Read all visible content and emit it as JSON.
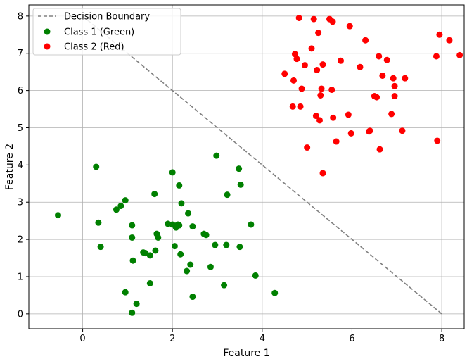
{
  "chart_data": {
    "type": "scatter",
    "xlabel": "Feature 1",
    "ylabel": "Feature 2",
    "xlim": [
      -1.2,
      8.5
    ],
    "ylim": [
      -0.4,
      8.3
    ],
    "xticks": [
      "0",
      "2",
      "4",
      "6",
      "8"
    ],
    "xtick_values": [
      0,
      2,
      4,
      6,
      8
    ],
    "yticks": [
      "0",
      "1",
      "2",
      "3",
      "4",
      "5",
      "6",
      "7",
      "8"
    ],
    "ytick_values": [
      0,
      1,
      2,
      3,
      4,
      5,
      6,
      7,
      8
    ],
    "grid": true,
    "legend_position": "top-left",
    "boundary": {
      "name": "Decision Boundary",
      "color": "#808080",
      "x": [
        0,
        8
      ],
      "y": [
        8,
        0
      ]
    },
    "series": [
      {
        "name": "Class 1 (Green)",
        "color": "#008000",
        "points": [
          [
            -0.55,
            2.65
          ],
          [
            0.3,
            3.95
          ],
          [
            0.35,
            2.45
          ],
          [
            0.4,
            1.8
          ],
          [
            0.75,
            2.8
          ],
          [
            0.85,
            2.9
          ],
          [
            0.95,
            3.05
          ],
          [
            0.95,
            0.58
          ],
          [
            1.1,
            2.38
          ],
          [
            1.1,
            2.05
          ],
          [
            1.12,
            1.43
          ],
          [
            1.1,
            0.03
          ],
          [
            1.2,
            0.27
          ],
          [
            1.35,
            1.65
          ],
          [
            1.4,
            1.63
          ],
          [
            1.5,
            1.57
          ],
          [
            1.5,
            0.82
          ],
          [
            1.6,
            3.22
          ],
          [
            1.62,
            1.7
          ],
          [
            1.65,
            2.15
          ],
          [
            1.68,
            2.05
          ],
          [
            1.9,
            2.42
          ],
          [
            2.0,
            2.4
          ],
          [
            2.0,
            3.8
          ],
          [
            2.05,
            1.82
          ],
          [
            2.08,
            2.32
          ],
          [
            2.12,
            2.4
          ],
          [
            2.15,
            3.45
          ],
          [
            2.15,
            2.38
          ],
          [
            2.18,
            1.6
          ],
          [
            2.2,
            2.97
          ],
          [
            2.32,
            1.15
          ],
          [
            2.35,
            2.7
          ],
          [
            2.4,
            1.32
          ],
          [
            2.45,
            2.35
          ],
          [
            2.45,
            0.46
          ],
          [
            2.7,
            2.15
          ],
          [
            2.75,
            2.12
          ],
          [
            2.85,
            1.26
          ],
          [
            2.95,
            1.85
          ],
          [
            2.98,
            4.25
          ],
          [
            3.15,
            0.77
          ],
          [
            3.2,
            1.85
          ],
          [
            3.22,
            3.2
          ],
          [
            3.48,
            3.9
          ],
          [
            3.5,
            1.8
          ],
          [
            3.52,
            3.47
          ],
          [
            3.75,
            2.4
          ],
          [
            3.85,
            1.03
          ],
          [
            4.28,
            0.56
          ]
        ]
      },
      {
        "name": "Class 2 (Red)",
        "color": "#ff0000",
        "points": [
          [
            4.5,
            6.45
          ],
          [
            4.68,
            5.57
          ],
          [
            4.7,
            6.27
          ],
          [
            4.73,
            6.98
          ],
          [
            4.77,
            6.85
          ],
          [
            4.82,
            7.95
          ],
          [
            4.85,
            5.57
          ],
          [
            4.88,
            6.05
          ],
          [
            4.95,
            6.68
          ],
          [
            5.0,
            4.47
          ],
          [
            5.1,
            7.13
          ],
          [
            5.15,
            7.92
          ],
          [
            5.2,
            5.32
          ],
          [
            5.22,
            6.55
          ],
          [
            5.25,
            7.55
          ],
          [
            5.28,
            5.2
          ],
          [
            5.3,
            5.87
          ],
          [
            5.32,
            6.05
          ],
          [
            5.35,
            6.7
          ],
          [
            5.35,
            3.78
          ],
          [
            5.5,
            7.92
          ],
          [
            5.55,
            6.02
          ],
          [
            5.57,
            7.85
          ],
          [
            5.58,
            5.27
          ],
          [
            5.65,
            4.63
          ],
          [
            5.75,
            6.8
          ],
          [
            5.92,
            5.35
          ],
          [
            5.95,
            7.73
          ],
          [
            5.98,
            4.85
          ],
          [
            6.18,
            6.63
          ],
          [
            6.3,
            7.35
          ],
          [
            6.38,
            4.9
          ],
          [
            6.4,
            4.92
          ],
          [
            6.5,
            5.85
          ],
          [
            6.55,
            5.82
          ],
          [
            6.6,
            6.92
          ],
          [
            6.62,
            4.42
          ],
          [
            6.68,
            6.4
          ],
          [
            6.78,
            6.82
          ],
          [
            6.88,
            5.37
          ],
          [
            6.92,
            6.33
          ],
          [
            6.95,
            5.85
          ],
          [
            6.95,
            6.12
          ],
          [
            7.12,
            4.92
          ],
          [
            7.18,
            6.33
          ],
          [
            7.88,
            6.92
          ],
          [
            7.9,
            4.65
          ],
          [
            7.95,
            7.5
          ],
          [
            8.17,
            7.35
          ],
          [
            8.4,
            6.95
          ]
        ]
      }
    ]
  }
}
